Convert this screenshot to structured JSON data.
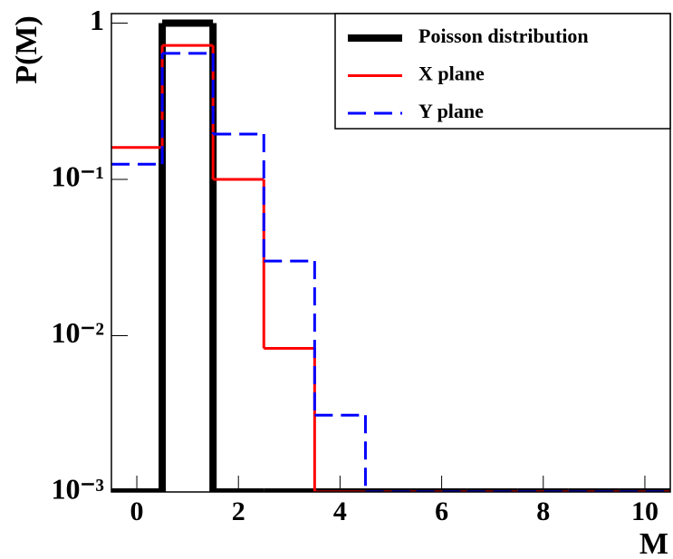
{
  "chart_data": {
    "type": "step",
    "xlabel": "M",
    "ylabel": "P(M)",
    "x": [
      0,
      1,
      2,
      3,
      4,
      5,
      6,
      7,
      8,
      9,
      10
    ],
    "bins": [
      -0.5,
      0.5,
      1.5,
      2.5,
      3.5,
      4.5,
      5.5,
      6.5,
      7.5,
      8.5,
      9.5,
      10.5
    ],
    "series": [
      {
        "name": "Poisson distribution",
        "color": "#000000",
        "style": "solid",
        "width": 8,
        "values": [
          0,
          1,
          0,
          0,
          0,
          0,
          0,
          0,
          0,
          0,
          0
        ]
      },
      {
        "name": "X plane",
        "color": "#ff0000",
        "style": "solid",
        "width": 3,
        "values": [
          0.16,
          0.72,
          0.1,
          0.0083,
          0,
          0,
          0,
          0,
          0,
          0,
          0
        ]
      },
      {
        "name": "Y plane",
        "color": "#0000ff",
        "style": "dashed",
        "width": 3,
        "values": [
          0.125,
          0.64,
          0.195,
          0.03,
          0.0031,
          0,
          0,
          0,
          0,
          0,
          0
        ]
      }
    ],
    "xlim": [
      -0.5,
      10.5
    ],
    "xticks": [
      0,
      2,
      4,
      6,
      8,
      10
    ],
    "ylim": [
      0.001,
      1.15
    ],
    "ylog": true,
    "yticks": [
      {
        "value": 0.001,
        "label": "10⁻³"
      },
      {
        "value": 0.01,
        "label": "10⁻²"
      },
      {
        "value": 0.1,
        "label": "10⁻¹"
      },
      1
    ],
    "legend": "top-right"
  }
}
